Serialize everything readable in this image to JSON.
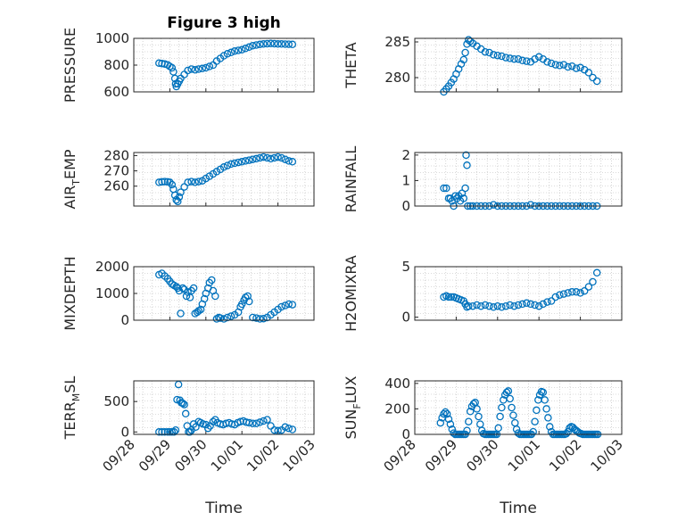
{
  "title": "Figure 3 high",
  "colors": {
    "marker": "#0072BD",
    "axis": "#262626",
    "grid": "#b8b8b8"
  },
  "chart_data": [
    {
      "type": "scatter",
      "ylabel": "PRESSURE",
      "ylim": [
        600,
        1000
      ],
      "yticks": [
        600,
        800,
        1000
      ],
      "yticklabels": [
        "600",
        "800",
        "1000"
      ],
      "xlim": [
        0,
        5
      ],
      "grid": true,
      "show_xticklabels": false,
      "x": [
        0.7,
        0.78,
        0.86,
        0.94,
        1.0,
        1.06,
        1.1,
        1.14,
        1.16,
        1.18,
        1.22,
        1.26,
        1.3,
        1.4,
        1.5,
        1.6,
        1.7,
        1.8,
        1.9,
        2.0,
        2.1,
        2.2,
        2.3,
        2.4,
        2.5,
        2.6,
        2.7,
        2.8,
        2.9,
        3.0,
        3.1,
        3.2,
        3.3,
        3.4,
        3.5,
        3.6,
        3.7,
        3.8,
        3.9,
        4.0,
        4.1,
        4.2,
        4.3,
        4.4
      ],
      "y": [
        815,
        812,
        808,
        802,
        790,
        780,
        750,
        700,
        660,
        640,
        660,
        680,
        700,
        730,
        760,
        770,
        765,
        770,
        775,
        780,
        790,
        800,
        830,
        850,
        870,
        885,
        895,
        905,
        910,
        915,
        925,
        935,
        945,
        950,
        955,
        958,
        960,
        962,
        960,
        958,
        958,
        957,
        956,
        955
      ]
    },
    {
      "type": "scatter",
      "ylabel": "THETA",
      "ylim": [
        278,
        285.5
      ],
      "yticks": [
        280,
        285
      ],
      "yticklabels": [
        "280",
        "285"
      ],
      "xlim": [
        0,
        5
      ],
      "grid": true,
      "show_xticklabels": false,
      "x": [
        0.7,
        0.76,
        0.82,
        0.88,
        0.94,
        1.0,
        1.06,
        1.12,
        1.18,
        1.22,
        1.26,
        1.3,
        1.34,
        1.4,
        1.5,
        1.6,
        1.7,
        1.8,
        1.9,
        2.0,
        2.1,
        2.2,
        2.3,
        2.4,
        2.5,
        2.6,
        2.7,
        2.8,
        2.9,
        3.0,
        3.1,
        3.2,
        3.3,
        3.4,
        3.5,
        3.6,
        3.7,
        3.8,
        3.9,
        4.0,
        4.1,
        4.2,
        4.3,
        4.4
      ],
      "y": [
        278.0,
        278.4,
        278.8,
        279.3,
        279.8,
        280.5,
        281.2,
        281.9,
        282.5,
        283.5,
        284.7,
        285.3,
        285.1,
        284.8,
        284.4,
        284.0,
        283.6,
        283.5,
        283.2,
        283.1,
        283.0,
        282.8,
        282.7,
        282.6,
        282.6,
        282.4,
        282.3,
        282.2,
        282.6,
        282.9,
        282.6,
        282.2,
        282.0,
        281.8,
        281.7,
        281.8,
        281.5,
        281.6,
        281.3,
        281.4,
        281.1,
        280.7,
        280.0,
        279.5
      ]
    },
    {
      "type": "scatter",
      "ylabel": "AIR_TEMP",
      "ylabel_main": "AIR",
      "ylabel_sub": "T",
      "ylabel_rest": "EMP",
      "ylim": [
        247,
        282
      ],
      "yticks": [
        260,
        270,
        280
      ],
      "yticklabels": [
        "260",
        "270",
        "280"
      ],
      "xlim": [
        0,
        5
      ],
      "grid": true,
      "show_xticklabels": false,
      "x": [
        0.7,
        0.78,
        0.86,
        0.94,
        1.0,
        1.06,
        1.1,
        1.14,
        1.18,
        1.22,
        1.26,
        1.3,
        1.4,
        1.5,
        1.6,
        1.7,
        1.8,
        1.9,
        2.0,
        2.1,
        2.2,
        2.3,
        2.4,
        2.5,
        2.6,
        2.7,
        2.8,
        2.9,
        3.0,
        3.1,
        3.2,
        3.3,
        3.4,
        3.5,
        3.6,
        3.7,
        3.8,
        3.9,
        4.0,
        4.1,
        4.2,
        4.3,
        4.4
      ],
      "y": [
        262.5,
        262.8,
        263.0,
        262.8,
        262.5,
        261.0,
        258.0,
        254.0,
        251.0,
        250.0,
        253.0,
        256.0,
        259.5,
        262.5,
        263.0,
        262.5,
        263.0,
        263.5,
        265.0,
        266.5,
        268.0,
        269.5,
        271.0,
        272.5,
        273.5,
        274.5,
        275.0,
        275.5,
        276.0,
        276.5,
        277.0,
        277.5,
        278.0,
        278.5,
        279.0,
        278.5,
        278.0,
        278.5,
        279.0,
        278.5,
        277.5,
        276.5,
        276.0
      ]
    },
    {
      "type": "scatter",
      "ylabel": "RAINFALL",
      "ylim": [
        0,
        2.1
      ],
      "yticks": [
        0,
        1,
        2
      ],
      "yticklabels": [
        "0",
        "1",
        "2"
      ],
      "xlim": [
        0,
        5
      ],
      "grid": true,
      "show_xticklabels": false,
      "x": [
        0.7,
        0.76,
        0.82,
        0.86,
        0.9,
        0.94,
        0.98,
        1.02,
        1.06,
        1.1,
        1.14,
        1.18,
        1.22,
        1.24,
        1.26,
        1.28,
        1.34,
        1.4,
        1.5,
        1.6,
        1.7,
        1.8,
        1.9,
        2.0,
        2.1,
        2.2,
        2.3,
        2.4,
        2.5,
        2.6,
        2.7,
        2.8,
        2.9,
        3.0,
        3.1,
        3.2,
        3.3,
        3.4,
        3.5,
        3.6,
        3.7,
        3.8,
        3.9,
        4.0,
        4.1,
        4.2,
        4.3,
        4.4
      ],
      "y": [
        0.7,
        0.7,
        0.3,
        0.3,
        0.2,
        0.0,
        0.4,
        0.3,
        0.4,
        0.2,
        0.5,
        0.3,
        0.7,
        2.0,
        1.6,
        0,
        0,
        0,
        0,
        0,
        0,
        0,
        0.05,
        0,
        0,
        0,
        0,
        0,
        0,
        0,
        0,
        0.05,
        0,
        0,
        0,
        0,
        0,
        0,
        0,
        0,
        0,
        0,
        0,
        0,
        0,
        0,
        0,
        0
      ]
    },
    {
      "type": "scatter",
      "ylabel": "MIXDEPTH",
      "ylim": [
        0,
        2000
      ],
      "yticks": [
        0,
        1000,
        2000
      ],
      "yticklabels": [
        "0",
        "1000",
        "2000"
      ],
      "xlim": [
        0,
        5
      ],
      "grid": true,
      "show_xticklabels": false,
      "x": [
        0.7,
        0.78,
        0.86,
        0.94,
        1.0,
        1.06,
        1.12,
        1.18,
        1.22,
        1.26,
        1.3,
        1.36,
        1.4,
        1.46,
        1.5,
        1.56,
        1.6,
        1.66,
        1.7,
        1.76,
        1.8,
        1.86,
        1.9,
        1.96,
        2.0,
        2.06,
        2.1,
        2.16,
        2.2,
        2.26,
        2.3,
        2.36,
        2.4,
        2.5,
        2.6,
        2.7,
        2.8,
        2.9,
        2.96,
        3.0,
        3.06,
        3.1,
        3.16,
        3.2,
        3.3,
        3.4,
        3.5,
        3.6,
        3.7,
        3.8,
        3.9,
        4.0,
        4.1,
        4.2,
        4.3,
        4.4
      ],
      "y": [
        1700,
        1750,
        1650,
        1550,
        1450,
        1350,
        1300,
        1250,
        1200,
        1100,
        250,
        1200,
        1150,
        900,
        1050,
        850,
        1100,
        1200,
        250,
        300,
        350,
        400,
        600,
        800,
        1000,
        1200,
        1400,
        1500,
        1100,
        900,
        50,
        100,
        80,
        50,
        100,
        150,
        200,
        300,
        500,
        600,
        750,
        850,
        900,
        700,
        100,
        80,
        50,
        60,
        100,
        200,
        300,
        400,
        500,
        550,
        600,
        580
      ]
    },
    {
      "type": "scatter",
      "ylabel": "H2OMIXRA",
      "ylim": [
        -0.3,
        5.0
      ],
      "yticks": [
        0,
        5
      ],
      "yticklabels": [
        "0",
        "5"
      ],
      "xlim": [
        0,
        5
      ],
      "grid": true,
      "show_xticklabels": false,
      "x": [
        0.7,
        0.76,
        0.82,
        0.88,
        0.94,
        1.0,
        1.06,
        1.12,
        1.18,
        1.22,
        1.26,
        1.3,
        1.4,
        1.5,
        1.6,
        1.7,
        1.8,
        1.9,
        2.0,
        2.1,
        2.2,
        2.3,
        2.4,
        2.5,
        2.6,
        2.7,
        2.8,
        2.9,
        3.0,
        3.1,
        3.2,
        3.3,
        3.4,
        3.5,
        3.6,
        3.7,
        3.8,
        3.9,
        4.0,
        4.1,
        4.2,
        4.3,
        4.4
      ],
      "y": [
        2.0,
        2.1,
        2.0,
        2.0,
        2.0,
        1.9,
        1.8,
        1.7,
        1.6,
        1.3,
        1.0,
        1.1,
        1.1,
        1.2,
        1.1,
        1.2,
        1.1,
        1.0,
        1.1,
        1.0,
        1.1,
        1.2,
        1.1,
        1.2,
        1.3,
        1.4,
        1.3,
        1.2,
        1.1,
        1.3,
        1.5,
        1.6,
        2.0,
        2.2,
        2.3,
        2.4,
        2.5,
        2.5,
        2.4,
        2.6,
        3.0,
        3.5,
        4.4
      ]
    },
    {
      "type": "scatter",
      "ylabel": "TERR_MSL",
      "ylabel_main": "TERR",
      "ylabel_sub": "M",
      "ylabel_rest": "SL",
      "ylim": [
        -40,
        840
      ],
      "yticks": [
        0,
        500
      ],
      "yticklabels": [
        "0",
        "500"
      ],
      "xlim": [
        0,
        5
      ],
      "xticks": [
        0,
        1,
        2,
        3,
        4,
        5
      ],
      "xticklabels": [
        "09/28",
        "09/29",
        "09/30",
        "10/01",
        "10/02",
        "10/03"
      ],
      "xlabel": "Time",
      "grid": true,
      "show_xticklabels": true,
      "x": [
        0.7,
        0.78,
        0.86,
        0.94,
        1.0,
        1.06,
        1.12,
        1.16,
        1.2,
        1.24,
        1.28,
        1.32,
        1.36,
        1.4,
        1.44,
        1.48,
        1.52,
        1.56,
        1.6,
        1.66,
        1.72,
        1.8,
        1.86,
        1.92,
        2.0,
        2.06,
        2.12,
        2.2,
        2.26,
        2.32,
        2.4,
        2.48,
        2.56,
        2.64,
        2.72,
        2.8,
        2.88,
        2.96,
        3.04,
        3.12,
        3.2,
        3.3,
        3.4,
        3.5,
        3.6,
        3.7,
        3.8,
        3.9,
        4.0,
        4.1,
        4.2,
        4.3,
        4.4
      ],
      "y": [
        0,
        0,
        0,
        0,
        0,
        0,
        0,
        30,
        530,
        780,
        520,
        480,
        470,
        450,
        300,
        100,
        0,
        0,
        30,
        130,
        80,
        170,
        150,
        130,
        120,
        60,
        100,
        170,
        200,
        150,
        130,
        120,
        140,
        150,
        130,
        120,
        150,
        170,
        180,
        160,
        150,
        140,
        140,
        160,
        180,
        200,
        100,
        30,
        20,
        30,
        80,
        60,
        40
      ]
    },
    {
      "type": "scatter",
      "ylabel": "SUN_FLUX",
      "ylabel_main": "SUN",
      "ylabel_sub": "F",
      "ylabel_rest": "LUX",
      "ylim": [
        0,
        420
      ],
      "yticks": [
        0,
        200,
        400
      ],
      "yticklabels": [
        "0",
        "200",
        "400"
      ],
      "xlim": [
        0,
        5
      ],
      "xticks": [
        0,
        1,
        2,
        3,
        4,
        5
      ],
      "xticklabels": [
        "09/28",
        "09/29",
        "09/30",
        "10/01",
        "10/02",
        "10/03"
      ],
      "xlabel": "Time",
      "grid": true,
      "show_xticklabels": true,
      "x": [
        0.62,
        0.66,
        0.7,
        0.74,
        0.78,
        0.82,
        0.86,
        0.9,
        0.94,
        0.98,
        1.02,
        1.06,
        1.1,
        1.14,
        1.18,
        1.22,
        1.26,
        1.3,
        1.34,
        1.38,
        1.42,
        1.46,
        1.5,
        1.54,
        1.58,
        1.62,
        1.66,
        1.7,
        1.74,
        1.78,
        1.82,
        1.86,
        1.9,
        1.94,
        1.98,
        2.02,
        2.06,
        2.1,
        2.14,
        2.18,
        2.22,
        2.26,
        2.3,
        2.34,
        2.38,
        2.42,
        2.46,
        2.5,
        2.54,
        2.58,
        2.62,
        2.66,
        2.7,
        2.74,
        2.78,
        2.82,
        2.86,
        2.9,
        2.94,
        2.98,
        3.02,
        3.06,
        3.1,
        3.14,
        3.18,
        3.22,
        3.26,
        3.3,
        3.34,
        3.38,
        3.42,
        3.46,
        3.5,
        3.54,
        3.58,
        3.62,
        3.66,
        3.7,
        3.74,
        3.78,
        3.82,
        3.86,
        3.9,
        3.94,
        3.98,
        4.02,
        4.06,
        4.1,
        4.14,
        4.18,
        4.22,
        4.26,
        4.3,
        4.34,
        4.38,
        4.42
      ],
      "y": [
        90,
        130,
        160,
        175,
        160,
        120,
        80,
        40,
        10,
        0,
        0,
        0,
        0,
        0,
        0,
        0,
        30,
        100,
        180,
        220,
        240,
        250,
        200,
        140,
        80,
        30,
        5,
        0,
        0,
        0,
        0,
        0,
        0,
        0,
        0,
        50,
        140,
        210,
        270,
        310,
        330,
        340,
        280,
        210,
        150,
        90,
        40,
        10,
        0,
        0,
        0,
        0,
        0,
        0,
        0,
        0,
        20,
        100,
        190,
        270,
        310,
        335,
        330,
        270,
        200,
        130,
        60,
        20,
        0,
        0,
        0,
        0,
        0,
        0,
        0,
        0,
        5,
        20,
        50,
        60,
        55,
        40,
        30,
        20,
        10,
        5,
        0,
        0,
        0,
        0,
        0,
        0,
        0,
        0,
        0,
        0
      ]
    }
  ]
}
